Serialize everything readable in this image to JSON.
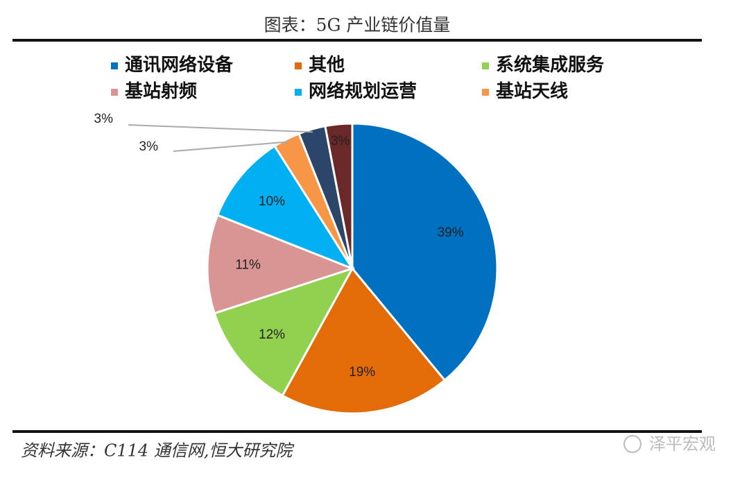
{
  "chart_data": {
    "type": "pie",
    "title": "图表：5G 产业链价值量",
    "categories": [
      "通讯网络设备",
      "其他",
      "系统集成服务",
      "基站射频",
      "网络规划运营",
      "基站天线",
      null,
      null
    ],
    "values": [
      39,
      19,
      12,
      11,
      10,
      3,
      3,
      3
    ],
    "value_labels": [
      "39%",
      "19%",
      "12%",
      "11%",
      "10%",
      "3%",
      "3%",
      "3%"
    ],
    "colors": [
      "#0070C0",
      "#E36C09",
      "#92D050",
      "#D99594",
      "#00B0F0",
      "#F79646",
      "#2B4669",
      "#6A2828"
    ],
    "source": "资料来源：C114 通信网,恒大研究院",
    "watermark": "泽平宏观"
  }
}
